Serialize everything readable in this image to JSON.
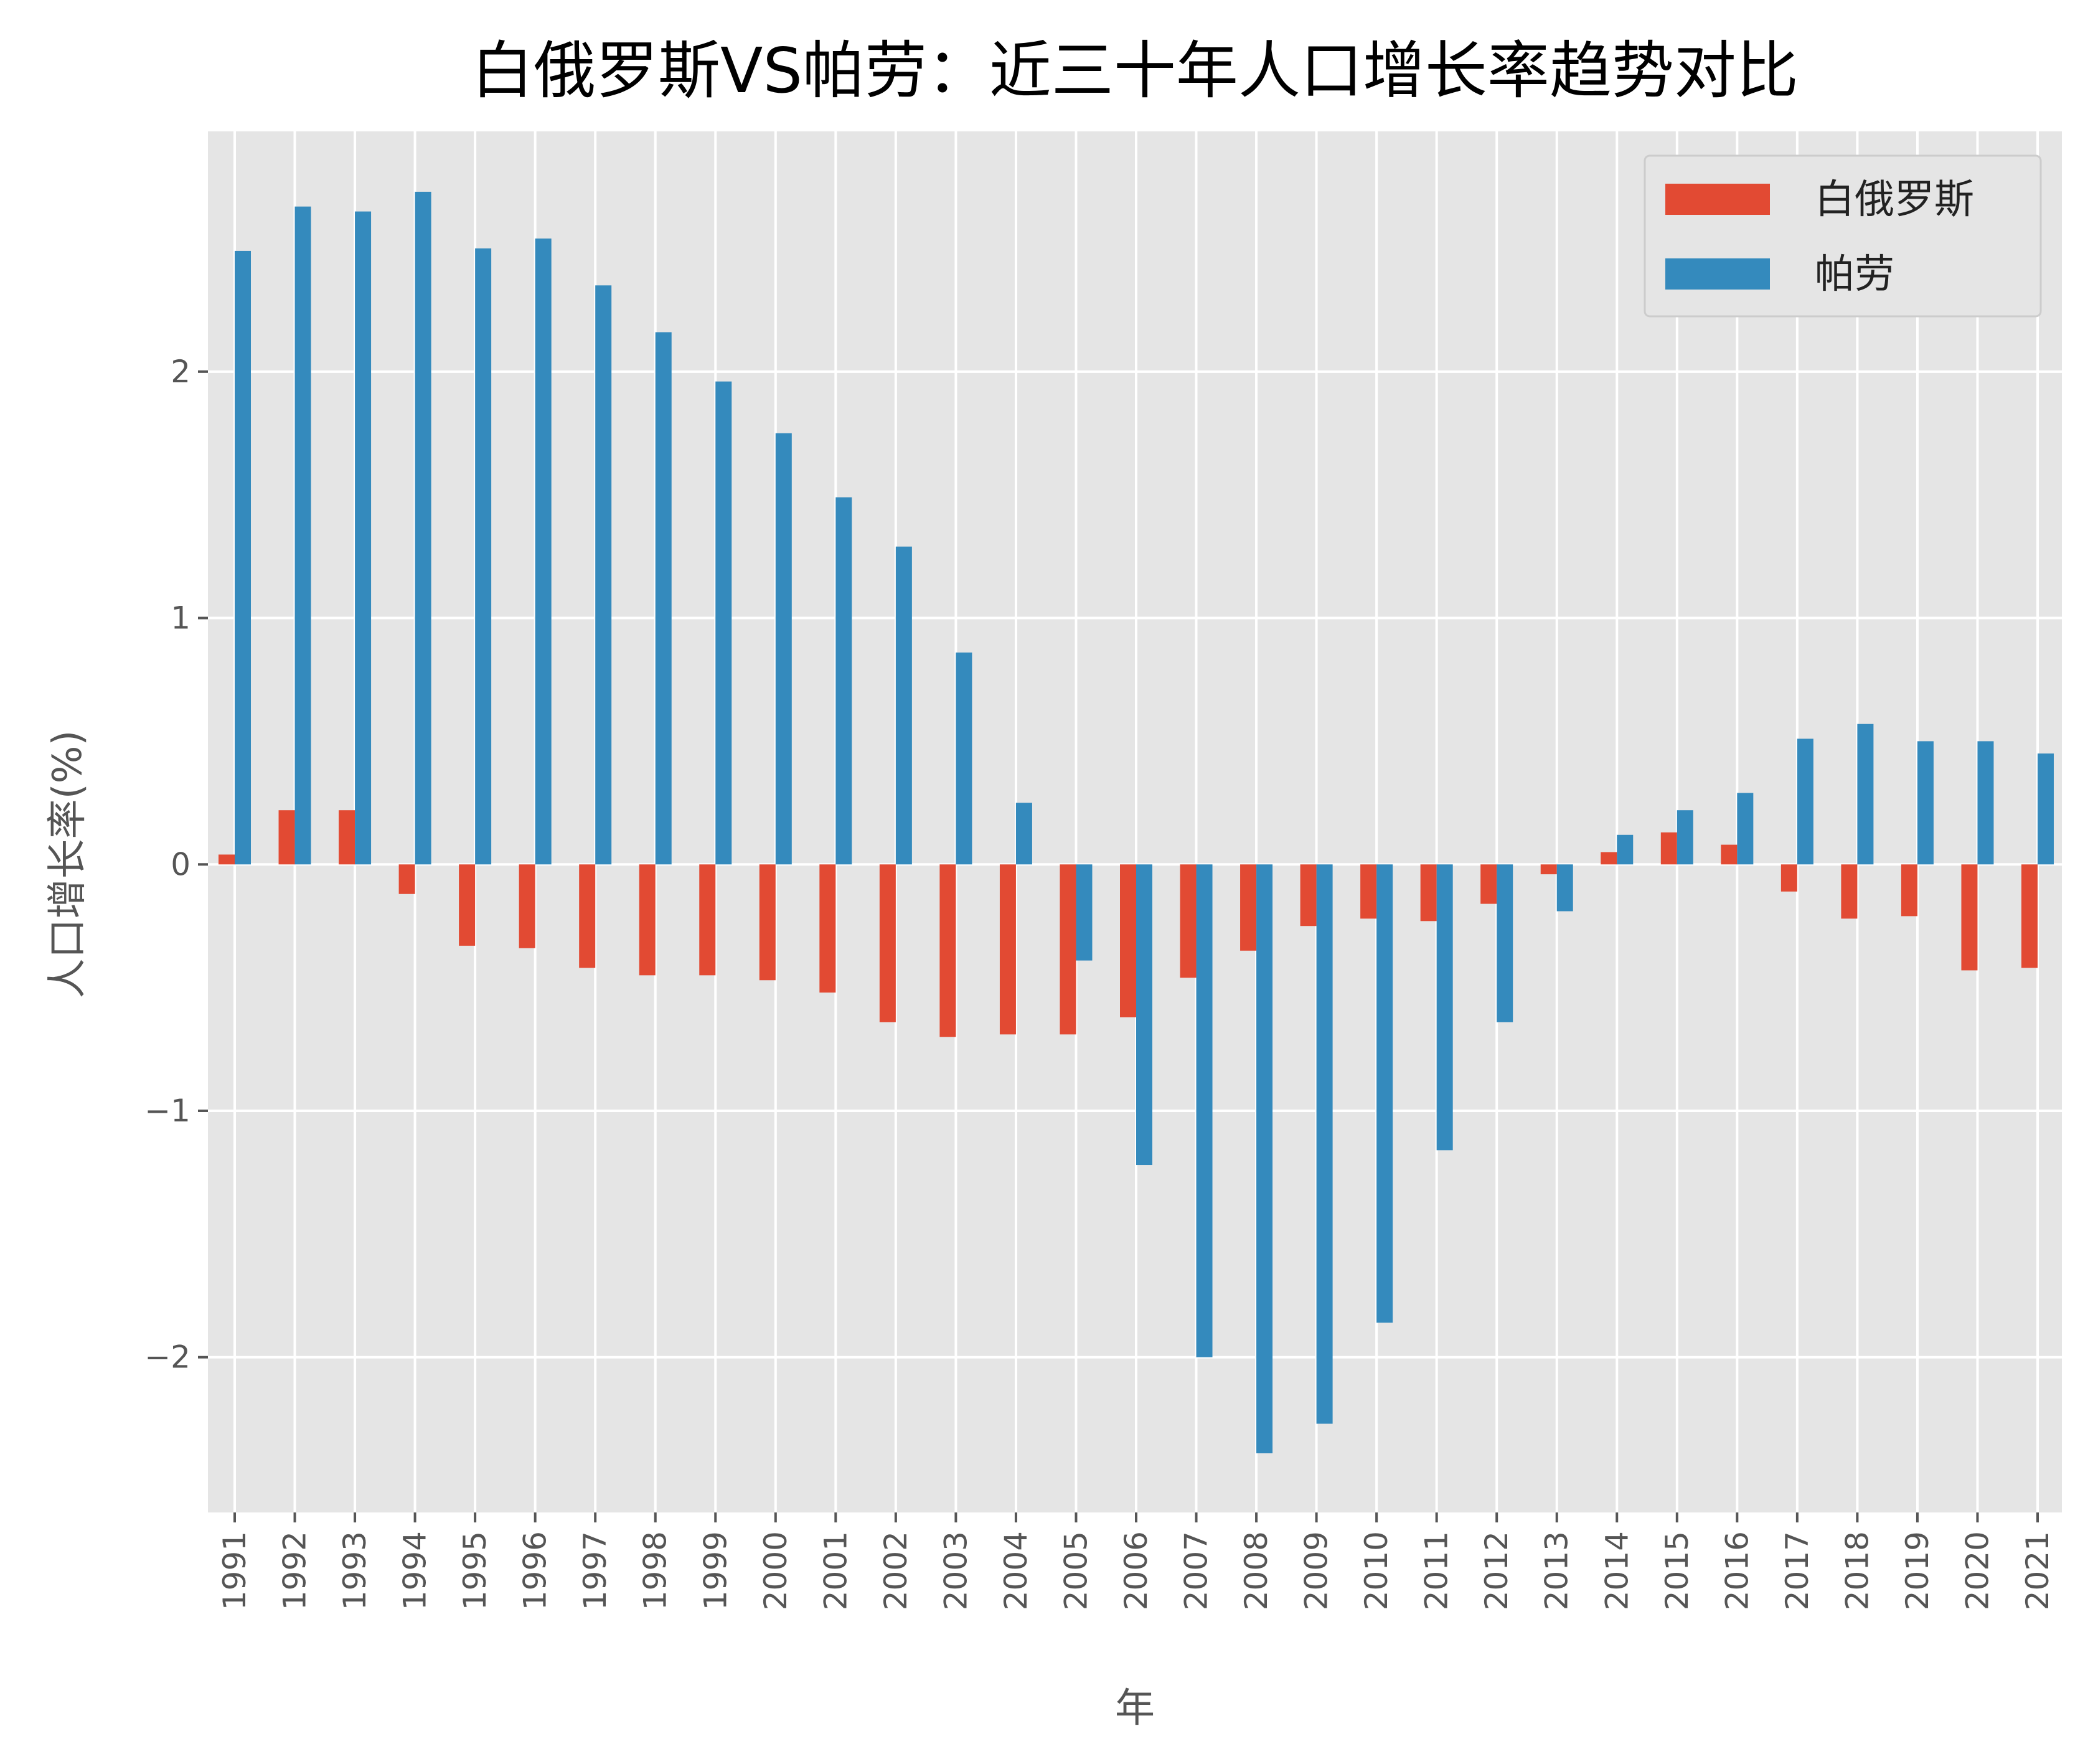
{
  "chart_data": {
    "type": "bar",
    "title": "白俄罗斯VS帕劳：近三十年人口增长率趋势对比",
    "xlabel": "年",
    "ylabel": "人口增长率(%)",
    "ylim": [
      -2.63,
      2.975
    ],
    "yticks": [
      -2,
      -1,
      0,
      1,
      2
    ],
    "ytick_labels": [
      "−2",
      "−1",
      "0",
      "1",
      "2"
    ],
    "grid": true,
    "legend_position": "top-right",
    "categories": [
      "1991",
      "1992",
      "1993",
      "1994",
      "1995",
      "1996",
      "1997",
      "1998",
      "1999",
      "2000",
      "2001",
      "2002",
      "2003",
      "2004",
      "2005",
      "2006",
      "2007",
      "2008",
      "2009",
      "2010",
      "2011",
      "2012",
      "2013",
      "2014",
      "2015",
      "2016",
      "2017",
      "2018",
      "2019",
      "2020",
      "2021"
    ],
    "series": [
      {
        "name": "白俄罗斯",
        "color": "#E24A33",
        "values": [
          0.04,
          0.22,
          0.22,
          -0.12,
          -0.33,
          -0.34,
          -0.42,
          -0.45,
          -0.45,
          -0.47,
          -0.52,
          -0.64,
          -0.7,
          -0.69,
          -0.69,
          -0.62,
          -0.46,
          -0.35,
          -0.25,
          -0.22,
          -0.23,
          -0.16,
          -0.04,
          0.05,
          0.13,
          0.08,
          -0.11,
          -0.22,
          -0.21,
          -0.43,
          -0.42
        ]
      },
      {
        "name": "帕劳",
        "color": "#348ABD",
        "values": [
          2.49,
          2.67,
          2.65,
          2.73,
          2.5,
          2.54,
          2.35,
          2.16,
          1.96,
          1.75,
          1.49,
          1.29,
          0.86,
          0.25,
          -0.39,
          -1.22,
          -2.0,
          -2.39,
          -2.27,
          -1.86,
          -1.16,
          -0.64,
          -0.19,
          0.12,
          0.22,
          0.29,
          0.51,
          0.57,
          0.5,
          0.5,
          0.45
        ]
      }
    ]
  }
}
